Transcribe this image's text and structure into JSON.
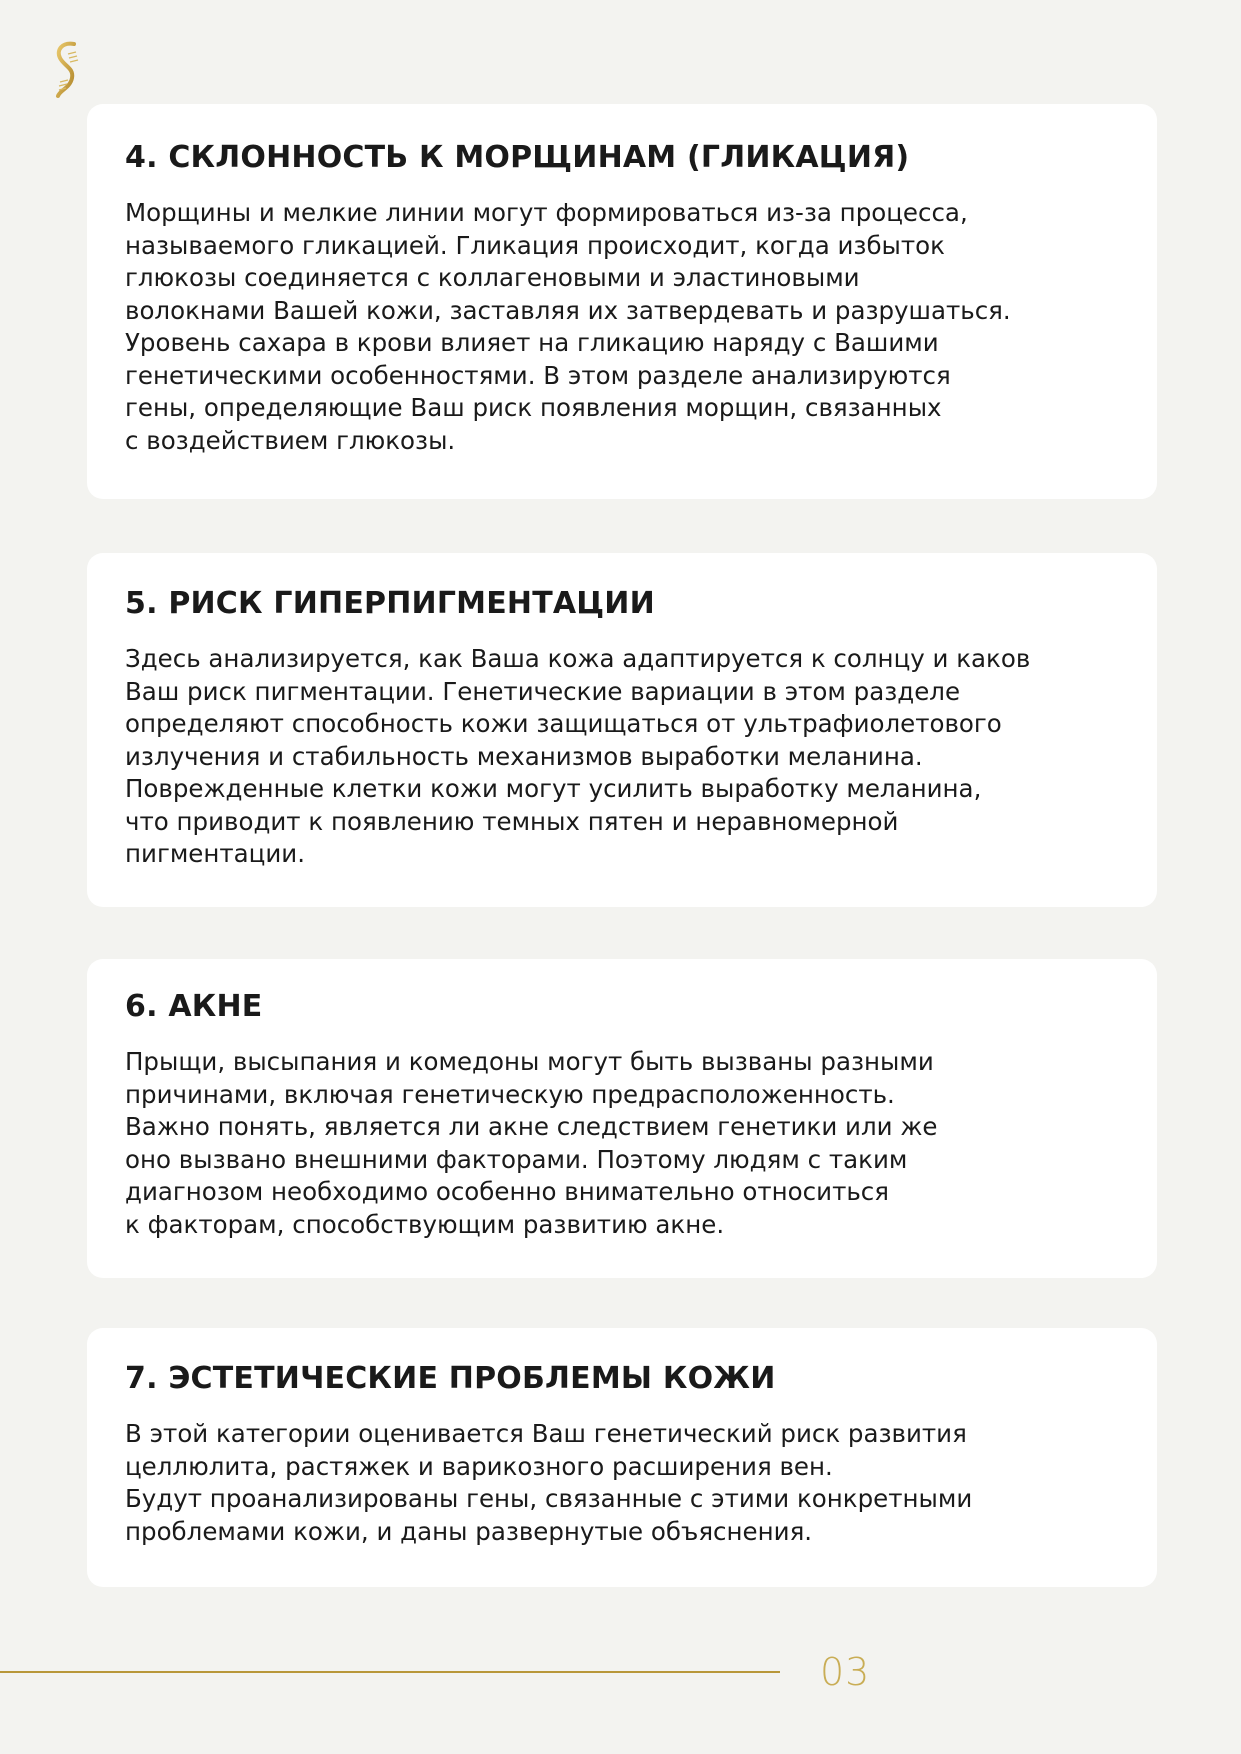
{
  "sections": [
    {
      "title": "4. СКЛОННОСТЬ К МОРЩИНАМ (ГЛИКАЦИЯ)",
      "lines": [
        "Морщины и мелкие линии могут формироваться из-за процесса,",
        "называемого гликацией. Гликация происходит, когда избыток",
        "глюкозы соединяется с коллагеновыми и эластиновыми",
        "волокнами Вашей кожи, заставляя их затвердевать и разрушаться.",
        "Уровень сахара в крови влияет на гликацию наряду с Вашими",
        "генетическими особенностями. В этом разделе анализируются",
        "гены, определяющие Ваш риск появления морщин, связанных",
        "с воздействием глюкозы."
      ]
    },
    {
      "title": "5. РИСК ГИПЕРПИГМЕНТАЦИИ",
      "lines": [
        "Здесь анализируется, как Ваша кожа адаптируется к солнцу и каков",
        "Ваш риск пигментации. Генетические вариации в этом разделе",
        "определяют способность кожи защищаться от ультрафиолетового",
        "излучения и стабильность механизмов выработки меланина.",
        "Поврежденные клетки кожи могут усилить выработку меланина,",
        "что приводит к появлению темных пятен и неравномерной",
        "пигментации."
      ]
    },
    {
      "title": "6. АКНЕ",
      "lines": [
        "Прыщи, высыпания и комедоны могут быть вызваны разными",
        "причинами, включая генетическую предрасположенность.",
        "Важно понять, является ли акне следствием генетики или же",
        "оно вызвано внешними факторами. Поэтому людям с таким",
        "диагнозом необходимо особенно внимательно относиться",
        "к факторам, способствующим развитию акне."
      ]
    },
    {
      "title": "7. ЭСТЕТИЧЕСКИЕ ПРОБЛЕМЫ КОЖИ",
      "lines": [
        "В этой категории оценивается Ваш генетический риск развития",
        "целлюлита, растяжек и варикозного расширения вен.",
        "Будут проанализированы гены, связанные с этими конкретными",
        "проблемами кожи, и даны развернутые объяснения."
      ]
    }
  ],
  "footer": {
    "page_number": "03"
  },
  "colors": {
    "accent": "#b8973a",
    "background": "#f3f3f0",
    "card": "#ffffff"
  },
  "logo_icon": "dna-helix-icon"
}
